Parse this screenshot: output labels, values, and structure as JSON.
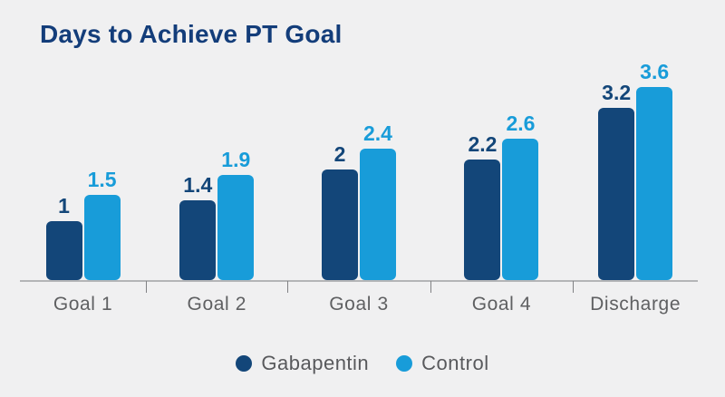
{
  "title": "Days to Achieve PT Goal",
  "colors": {
    "background": "#f0f0f1",
    "title": "#133d7a",
    "gabapentin": "#134679",
    "control": "#189cd9",
    "axis_line": "#b4b5b7",
    "tick": "#808184",
    "category_text": "#5f6062",
    "legend_text": "#58595c"
  },
  "chart_data": {
    "type": "bar",
    "title": "Days to Achieve PT Goal",
    "categories": [
      "Goal 1",
      "Goal 2",
      "Goal 3",
      "Goal 4",
      "Discharge"
    ],
    "series": [
      {
        "name": "Gabapentin",
        "color": "#134679",
        "values": [
          1,
          1.4,
          2,
          2.2,
          3.2
        ],
        "labels": [
          "1",
          "1.4",
          "2",
          "2.2",
          "3.2"
        ]
      },
      {
        "name": "Control",
        "color": "#189cd9",
        "values": [
          1.5,
          1.9,
          2.4,
          2.6,
          3.6
        ],
        "labels": [
          "1.5",
          "1.9",
          "2.4",
          "2.6",
          "3.6"
        ]
      }
    ],
    "xlabel": "",
    "ylabel": "",
    "ylim": [
      0,
      4
    ],
    "grid": false,
    "y_axis_visible": false,
    "data_labels_visible": true,
    "legend_position": "bottom"
  },
  "legend": {
    "items": [
      {
        "label": "Gabapentin",
        "color": "#134679"
      },
      {
        "label": "Control",
        "color": "#189cd9"
      }
    ]
  }
}
